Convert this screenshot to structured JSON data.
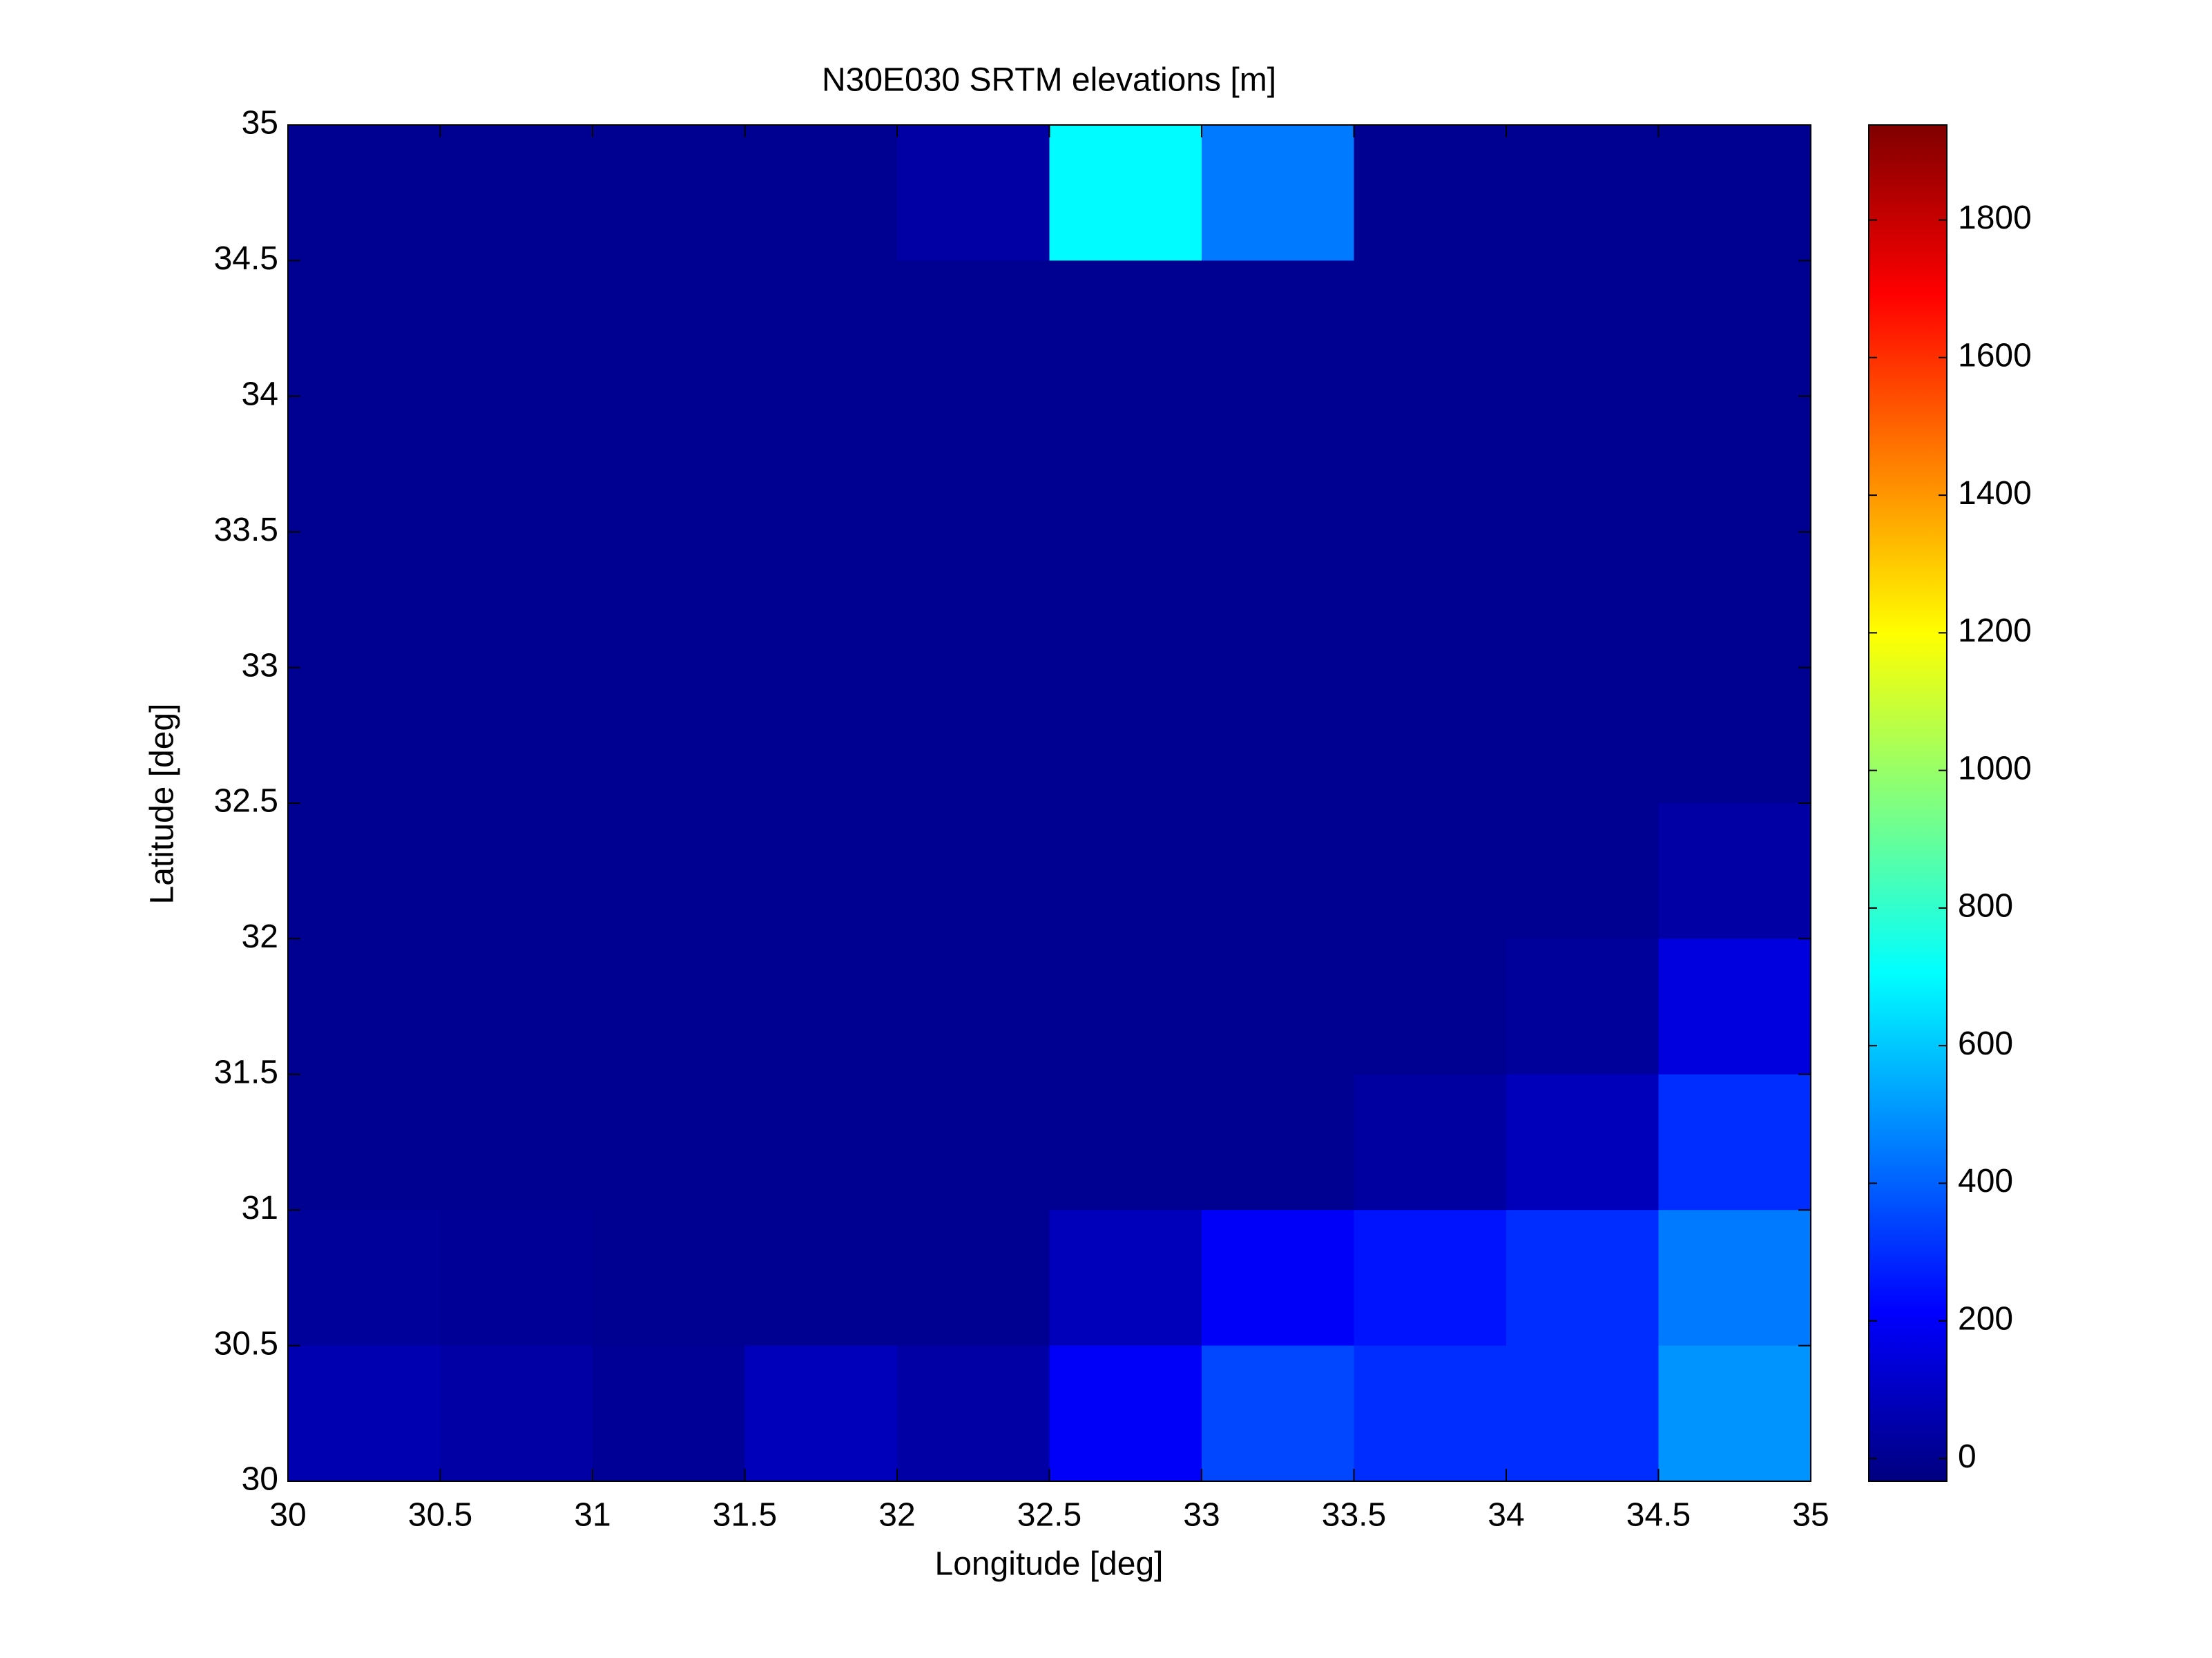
{
  "chart_data": {
    "type": "heatmap",
    "title": "N30E030 SRTM elevations [m]",
    "x_label": "Longitude [deg]",
    "y_label": "Latitude [deg]",
    "x": [
      30.25,
      30.75,
      31.25,
      31.75,
      32.25,
      32.75,
      33.25,
      33.75,
      34.25,
      34.75
    ],
    "y": [
      34.75,
      34.25,
      33.75,
      33.25,
      32.75,
      32.25,
      31.75,
      31.25,
      30.75,
      30.25
    ],
    "values": [
      [
        0,
        0,
        0,
        0,
        40,
        700,
        450,
        0,
        0,
        0
      ],
      [
        0,
        0,
        0,
        0,
        0,
        0,
        0,
        0,
        0,
        0
      ],
      [
        0,
        0,
        0,
        0,
        0,
        0,
        0,
        0,
        0,
        0
      ],
      [
        0,
        0,
        0,
        0,
        0,
        0,
        0,
        0,
        0,
        0
      ],
      [
        0,
        0,
        0,
        0,
        0,
        0,
        0,
        0,
        0,
        0
      ],
      [
        0,
        0,
        0,
        0,
        0,
        0,
        0,
        0,
        0,
        40
      ],
      [
        0,
        0,
        0,
        0,
        0,
        0,
        0,
        0,
        20,
        150
      ],
      [
        0,
        0,
        0,
        0,
        0,
        0,
        0,
        30,
        80,
        300
      ],
      [
        20,
        10,
        0,
        0,
        0,
        80,
        200,
        250,
        300,
        450
      ],
      [
        60,
        40,
        10,
        80,
        40,
        200,
        350,
        300,
        300,
        500
      ]
    ],
    "xlim": [
      30,
      35
    ],
    "ylim": [
      30,
      35
    ],
    "xticks": [
      30,
      30.5,
      31,
      31.5,
      32,
      32.5,
      33,
      33.5,
      34,
      34.5,
      35
    ],
    "yticks": [
      30,
      30.5,
      31,
      31.5,
      32,
      32.5,
      33,
      33.5,
      34,
      34.5,
      35
    ],
    "clim": [
      -33,
      1938
    ],
    "cticks": [
      0,
      200,
      400,
      600,
      800,
      1000,
      1200,
      1400,
      1600,
      1800
    ],
    "colormap": "jet"
  }
}
